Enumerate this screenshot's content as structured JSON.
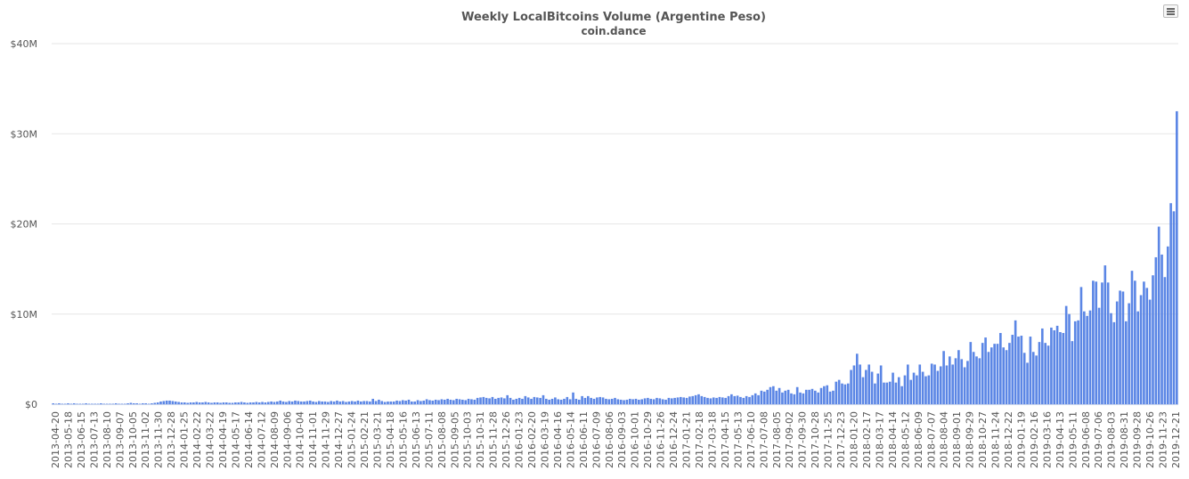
{
  "chart_data": {
    "type": "bar",
    "title": "Weekly LocalBitcoins Volume (Argentine Peso)",
    "subtitle": "coin.dance",
    "ylim": [
      0,
      40000000
    ],
    "y_ticks": [
      {
        "value": 0,
        "label": "$0"
      },
      {
        "value": 10000000,
        "label": "$10M"
      },
      {
        "value": 20000000,
        "label": "$20M"
      },
      {
        "value": 30000000,
        "label": "$30M"
      },
      {
        "value": 40000000,
        "label": "$40M"
      }
    ],
    "x_tick_labels": [
      "2013-04-20",
      "2013-05-18",
      "2013-06-15",
      "2013-07-13",
      "2013-08-10",
      "2013-09-07",
      "2013-10-05",
      "2013-11-02",
      "2013-11-30",
      "2013-12-28",
      "2014-01-25",
      "2014-02-22",
      "2014-03-22",
      "2014-04-19",
      "2014-05-17",
      "2014-06-14",
      "2014-07-12",
      "2014-08-09",
      "2014-09-06",
      "2014-10-04",
      "2014-11-01",
      "2014-11-29",
      "2014-12-27",
      "2015-01-24",
      "2015-02-21",
      "2015-03-21",
      "2015-04-18",
      "2015-05-16",
      "2015-06-13",
      "2015-07-11",
      "2015-08-08",
      "2015-09-05",
      "2015-10-03",
      "2015-10-31",
      "2015-11-28",
      "2015-12-26",
      "2016-01-23",
      "2016-02-20",
      "2016-03-19",
      "2016-04-16",
      "2016-05-14",
      "2016-06-11",
      "2016-07-09",
      "2016-08-06",
      "2016-09-03",
      "2016-10-01",
      "2016-10-29",
      "2016-11-26",
      "2016-12-24",
      "2017-01-21",
      "2017-02-18",
      "2017-03-18",
      "2017-04-15",
      "2017-05-13",
      "2017-06-10",
      "2017-07-08",
      "2017-08-05",
      "2017-09-02",
      "2017-09-30",
      "2017-10-28",
      "2017-11-25",
      "2017-12-23",
      "2018-01-20",
      "2018-02-17",
      "2018-03-17",
      "2018-04-14",
      "2018-05-12",
      "2018-06-09",
      "2018-07-07",
      "2018-08-04",
      "2018-09-01",
      "2018-09-29",
      "2018-10-27",
      "2018-11-24",
      "2018-12-22",
      "2019-01-19",
      "2019-02-16",
      "2019-03-16",
      "2019-04-13",
      "2019-05-11",
      "2019-06-08",
      "2019-07-06",
      "2019-08-03",
      "2019-08-31",
      "2019-09-28",
      "2019-10-26",
      "2019-11-23",
      "2019-12-21"
    ],
    "values_millions": [
      0.1,
      0.05,
      0.1,
      0.05,
      0.05,
      0.1,
      0.05,
      0.1,
      0.05,
      0.05,
      0.05,
      0.1,
      0.05,
      0.05,
      0.05,
      0.05,
      0.1,
      0.05,
      0.05,
      0.05,
      0.05,
      0.1,
      0.05,
      0.05,
      0.05,
      0.1,
      0.15,
      0.1,
      0.1,
      0.05,
      0.1,
      0.1,
      0.05,
      0.1,
      0.15,
      0.2,
      0.3,
      0.35,
      0.4,
      0.4,
      0.35,
      0.3,
      0.25,
      0.2,
      0.2,
      0.15,
      0.2,
      0.2,
      0.25,
      0.2,
      0.2,
      0.25,
      0.2,
      0.15,
      0.2,
      0.2,
      0.15,
      0.2,
      0.2,
      0.15,
      0.15,
      0.2,
      0.2,
      0.25,
      0.2,
      0.15,
      0.2,
      0.2,
      0.25,
      0.2,
      0.25,
      0.2,
      0.25,
      0.3,
      0.25,
      0.3,
      0.4,
      0.3,
      0.25,
      0.35,
      0.3,
      0.4,
      0.35,
      0.3,
      0.3,
      0.35,
      0.4,
      0.3,
      0.25,
      0.35,
      0.3,
      0.3,
      0.25,
      0.35,
      0.3,
      0.4,
      0.3,
      0.35,
      0.25,
      0.3,
      0.35,
      0.3,
      0.4,
      0.3,
      0.35,
      0.35,
      0.3,
      0.6,
      0.35,
      0.5,
      0.35,
      0.25,
      0.3,
      0.3,
      0.3,
      0.4,
      0.35,
      0.45,
      0.4,
      0.5,
      0.3,
      0.3,
      0.45,
      0.35,
      0.4,
      0.55,
      0.45,
      0.4,
      0.5,
      0.45,
      0.55,
      0.5,
      0.6,
      0.5,
      0.45,
      0.6,
      0.55,
      0.5,
      0.45,
      0.6,
      0.55,
      0.5,
      0.7,
      0.75,
      0.8,
      0.7,
      0.65,
      0.8,
      0.6,
      0.7,
      0.75,
      0.65,
      1.0,
      0.7,
      0.5,
      0.6,
      0.7,
      0.6,
      0.9,
      0.75,
      0.6,
      0.8,
      0.75,
      0.7,
      1.0,
      0.6,
      0.5,
      0.6,
      0.75,
      0.55,
      0.5,
      0.6,
      0.8,
      0.55,
      1.3,
      0.6,
      0.5,
      0.9,
      0.7,
      0.9,
      0.7,
      0.6,
      0.75,
      0.8,
      0.75,
      0.6,
      0.55,
      0.6,
      0.7,
      0.55,
      0.5,
      0.45,
      0.5,
      0.6,
      0.55,
      0.6,
      0.5,
      0.55,
      0.65,
      0.7,
      0.6,
      0.55,
      0.7,
      0.65,
      0.55,
      0.5,
      0.7,
      0.65,
      0.7,
      0.75,
      0.8,
      0.75,
      0.7,
      0.85,
      0.9,
      1.0,
      1.1,
      0.9,
      0.8,
      0.7,
      0.65,
      0.75,
      0.7,
      0.8,
      0.75,
      0.7,
      0.9,
      1.1,
      0.9,
      0.95,
      0.8,
      0.7,
      0.9,
      0.8,
      1.0,
      1.2,
      1.0,
      1.5,
      1.4,
      1.6,
      1.9,
      2.0,
      1.5,
      1.8,
      1.3,
      1.5,
      1.6,
      1.2,
      1.1,
      1.9,
      1.3,
      1.2,
      1.6,
      1.6,
      1.7,
      1.5,
      1.3,
      1.8,
      2.0,
      2.1,
      1.4,
      1.5,
      2.5,
      2.7,
      2.3,
      2.2,
      2.3,
      3.8,
      4.3,
      5.6,
      4.4,
      3.0,
      3.8,
      4.4,
      3.6,
      2.3,
      3.4,
      4.3,
      2.4,
      2.4,
      2.5,
      3.5,
      2.4,
      3.0,
      2.0,
      3.2,
      4.4,
      2.7,
      3.5,
      3.2,
      4.4,
      3.6,
      3.1,
      3.2,
      4.5,
      4.4,
      3.7,
      4.2,
      5.9,
      4.3,
      5.3,
      4.4,
      5.1,
      6.0,
      5.0,
      4.1,
      4.8,
      6.9,
      5.8,
      5.3,
      5.1,
      6.8,
      7.4,
      5.8,
      6.3,
      6.7,
      6.7,
      7.9,
      6.3,
      6.0,
      6.8,
      7.7,
      9.3,
      7.5,
      7.6,
      5.7,
      4.6,
      7.5,
      5.8,
      5.4,
      6.9,
      8.4,
      6.8,
      6.5,
      8.5,
      8.2,
      8.7,
      8.0,
      7.9,
      10.9,
      10.0,
      7.0,
      9.2,
      9.3,
      13.0,
      10.3,
      9.8,
      10.4,
      13.7,
      13.6,
      10.7,
      13.5,
      15.4,
      13.5,
      10.1,
      9.1,
      11.4,
      12.6,
      12.5,
      9.2,
      11.2,
      14.8,
      13.7,
      10.3,
      12.1,
      13.6,
      12.9,
      11.6,
      14.3,
      16.3,
      19.7,
      16.6,
      14.1,
      17.5,
      22.3,
      21.4,
      32.5
    ]
  }
}
